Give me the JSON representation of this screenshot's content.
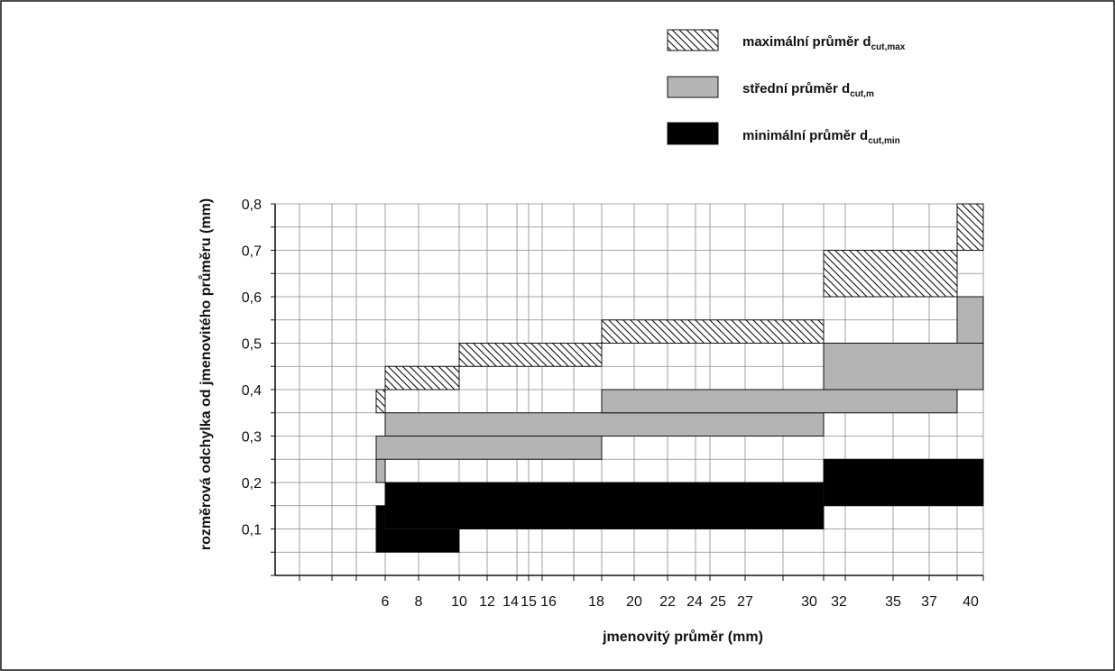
{
  "chart_data": {
    "type": "bar",
    "title": "",
    "xlabel": "jmenovitý průměr (mm)",
    "ylabel": "rozměrová odchylka od jmenovitého průměru (mm)",
    "ylim": [
      0,
      0.8
    ],
    "x_tick_labels": [
      "6",
      "8",
      "10",
      "12",
      "14",
      "15",
      "16",
      "18",
      "20",
      "22",
      "24",
      "25",
      "27",
      "30",
      "32",
      "35",
      "37",
      "40"
    ],
    "y_tick_labels": [
      "0,1",
      "0,2",
      "0,3",
      "0,4",
      "0,5",
      "0,6",
      "0,7",
      "0,8"
    ],
    "grid": true,
    "legend_position": "top-right",
    "legend": [
      {
        "name": "maximální průměr",
        "symbol": "d",
        "subscript": "cut,max",
        "pattern": "hatched"
      },
      {
        "name": "střední průměr",
        "symbol": "d",
        "subscript": "cut,m",
        "color": "#b4b4b4"
      },
      {
        "name": "minimální průměr",
        "symbol": "d",
        "subscript": "cut,min",
        "color": "#000000"
      }
    ],
    "series": [
      {
        "key": "max",
        "legend_index": 0,
        "ranges": [
          {
            "from": 5.5,
            "to": 6.0,
            "low": 0.35,
            "high": 0.4
          },
          {
            "from": 6.0,
            "to": 10.0,
            "low": 0.4,
            "high": 0.45
          },
          {
            "from": 10.0,
            "to": 18.0,
            "low": 0.45,
            "high": 0.5
          },
          {
            "from": 18.0,
            "to": 30.0,
            "low": 0.5,
            "high": 0.55
          },
          {
            "from": 30.0,
            "to": 38.0,
            "low": 0.6,
            "high": 0.7
          },
          {
            "from": 38.0,
            "to": 40.0,
            "low": 0.7,
            "high": 0.8
          }
        ]
      },
      {
        "key": "mid",
        "legend_index": 1,
        "ranges": [
          {
            "from": 5.5,
            "to": 6.0,
            "low": 0.2,
            "high": 0.3
          },
          {
            "from": 5.5,
            "to": 18.0,
            "low": 0.25,
            "high": 0.3
          },
          {
            "from": 6.0,
            "to": 30.0,
            "low": 0.3,
            "high": 0.35
          },
          {
            "from": 18.0,
            "to": 38.0,
            "low": 0.35,
            "high": 0.4
          },
          {
            "from": 30.0,
            "to": 40.0,
            "low": 0.4,
            "high": 0.5
          },
          {
            "from": 38.0,
            "to": 40.0,
            "low": 0.5,
            "high": 0.6
          }
        ]
      },
      {
        "key": "min",
        "legend_index": 2,
        "ranges": [
          {
            "from": 5.5,
            "to": 10.0,
            "low": 0.05,
            "high": 0.15
          },
          {
            "from": 6.0,
            "to": 30.0,
            "low": 0.1,
            "high": 0.2
          },
          {
            "from": 30.0,
            "to": 40.0,
            "low": 0.15,
            "high": 0.25
          }
        ]
      }
    ]
  }
}
